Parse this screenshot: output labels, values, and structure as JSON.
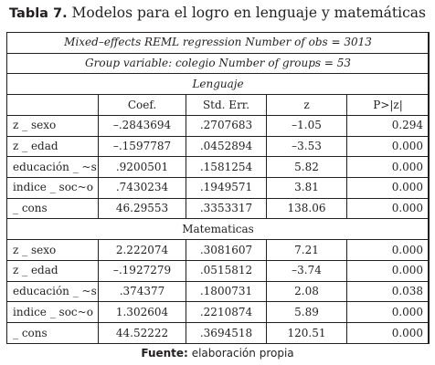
{
  "title": {
    "lead": "Tabla 7.",
    "text": "Modelos para el logro en lenguaje y matemáticas"
  },
  "table": {
    "model_line": "Mixed–effects REML regression Number of obs = 3013",
    "group_line": "Group variable: colegio Number of groups = 53",
    "columns": [
      "",
      "Coef.",
      "Std. Err.",
      "z",
      "P>|z|"
    ],
    "sections": [
      {
        "name": "Lenguaje",
        "rows": [
          [
            "z _ sexo",
            "–.2843694",
            ".2707683",
            "–1.05",
            "0.294"
          ],
          [
            "z _ edad",
            "–.1597787",
            ".0452894",
            "–3.53",
            "0.000"
          ],
          [
            "educación _ ~s",
            ".9200501",
            ".1581254",
            "5.82",
            "0.000"
          ],
          [
            "indice _ soc~o",
            ".7430234",
            ".1949571",
            "3.81",
            "0.000"
          ],
          [
            "_ cons",
            "46.29553",
            ".3353317",
            "138.06",
            "0.000"
          ]
        ]
      },
      {
        "name": "Matematicas",
        "rows": [
          [
            "z _ sexo",
            "2.222074",
            ".3081607",
            "7.21",
            "0.000"
          ],
          [
            "z _ edad",
            "–.1927279",
            ".0515812",
            "–3.74",
            "0.000"
          ],
          [
            "educación _ ~s",
            ".374377",
            ".1800731",
            "2.08",
            "0.038"
          ],
          [
            "indice _ soc~o",
            "1.302604",
            ".2210874",
            "5.89",
            "0.000"
          ],
          [
            "_ cons",
            "44.52222",
            ".3694518",
            "120.51",
            "0.000"
          ]
        ]
      }
    ]
  },
  "footer": {
    "label": "Fuente:",
    "text": "elaboración propia"
  }
}
